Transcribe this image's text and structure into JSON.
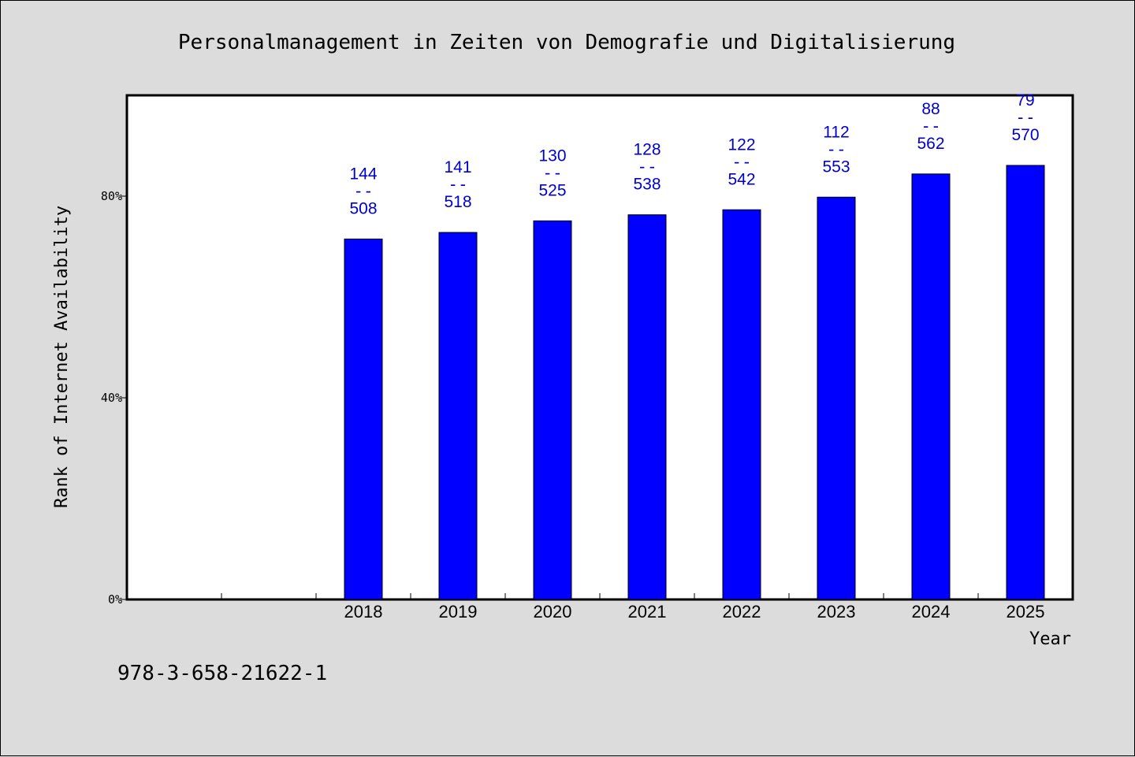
{
  "chart_data": {
    "type": "bar",
    "title": "Personalmanagement in Zeiten von Demografie und Digitalisierung",
    "xlabel": "Year",
    "ylabel": "Rank of Internet Availability",
    "footer": "978-3-658-21622-1",
    "categories": [
      "2018",
      "2019",
      "2020",
      "2021",
      "2022",
      "2023",
      "2024",
      "2025"
    ],
    "values": [
      71.5,
      72.8,
      75.1,
      76.3,
      77.3,
      79.8,
      84.4,
      86.1
    ],
    "rank_labels": [
      "144",
      "141",
      "130",
      "128",
      "122",
      "112",
      "88",
      "79"
    ],
    "total_labels": [
      "508",
      "518",
      "525",
      "538",
      "542",
      "553",
      "562",
      "570"
    ],
    "label_separator": "--",
    "yticks": [
      {
        "value": 0,
        "label": "0%"
      },
      {
        "value": 40,
        "label": "40%"
      },
      {
        "value": 80,
        "label": "80%"
      }
    ],
    "ylim": [
      0,
      100
    ],
    "empty_leading_slots": 2,
    "grid": false,
    "colors": {
      "bar": "#0000ff",
      "label": "#0000cc",
      "plot_background": "#ffffff",
      "page_background": "#dcdcdc"
    }
  }
}
